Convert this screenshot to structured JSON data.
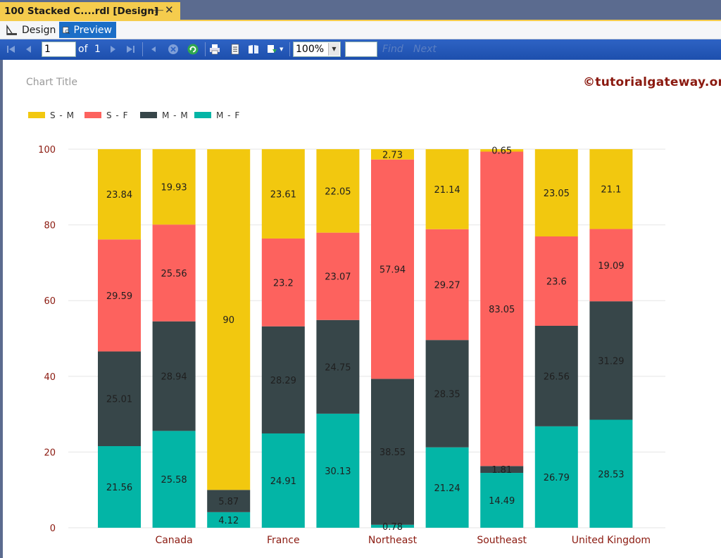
{
  "window": {
    "tab_title": "100 Stacked C....rdl [Design]",
    "pin_glyph": "⊣⊢",
    "close_glyph": "✕"
  },
  "view": {
    "design_label": "Design",
    "preview_label": "Preview"
  },
  "toolbar": {
    "page_value": "1",
    "of_label": "of",
    "page_total": "1",
    "zoom_value": "100%",
    "find_label": "Find",
    "next_label": "Next"
  },
  "report": {
    "chart_title": "Chart Title",
    "watermark": "©tutorialgateway.org"
  },
  "chart_data": {
    "type": "bar",
    "stacked": "100%",
    "categories": [
      "",
      "Canada",
      "",
      "France",
      "",
      "Northeast",
      "",
      "Southeast",
      "",
      "United Kingdom"
    ],
    "series": [
      {
        "name": "M - F",
        "color": "#03b5a6",
        "values": [
          21.56,
          25.58,
          4.12,
          24.91,
          30.13,
          0.78,
          21.24,
          14.49,
          26.79,
          28.53
        ]
      },
      {
        "name": "M - M",
        "color": "#374649",
        "values": [
          25.01,
          28.94,
          5.87,
          28.29,
          24.75,
          38.55,
          28.35,
          1.81,
          26.56,
          31.29
        ]
      },
      {
        "name": "S - F",
        "color": "#fd625e",
        "values": [
          29.59,
          25.56,
          null,
          23.2,
          23.07,
          57.94,
          29.27,
          83.05,
          23.6,
          19.09
        ]
      },
      {
        "name": "S - M",
        "color": "#f2c80f",
        "values": [
          23.84,
          19.93,
          90,
          23.61,
          22.05,
          2.73,
          21.14,
          0.65,
          23.05,
          21.1
        ]
      }
    ],
    "legend_order": [
      "S - M",
      "S - F",
      "M - M",
      "M - F"
    ],
    "legend_position": "top-left",
    "title": "Chart Title",
    "xlabel": "",
    "ylabel": "",
    "ylim": [
      0,
      100
    ],
    "yticks": [
      0,
      20,
      40,
      60,
      80,
      100
    ],
    "grid": true
  }
}
